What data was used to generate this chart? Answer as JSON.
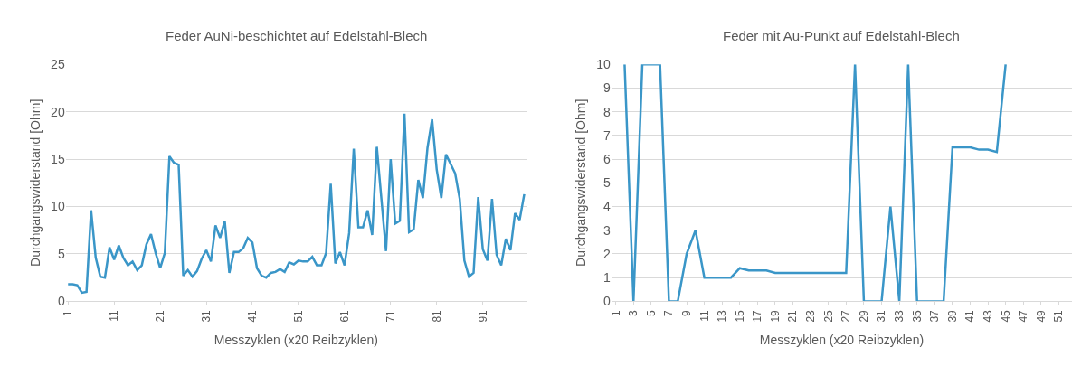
{
  "chart_data": [
    {
      "type": "line",
      "title": "Feder AuNi-beschichtet auf Edelstahl-Blech",
      "xlabel": "Messzyklen (x20 Reibzyklen)",
      "ylabel": "Durchgangswiderstand [Ohm]",
      "categories": [
        "1",
        null,
        null,
        null,
        null,
        null,
        null,
        null,
        null,
        null,
        "11",
        null,
        null,
        null,
        null,
        null,
        null,
        null,
        null,
        null,
        "21",
        null,
        null,
        null,
        null,
        null,
        null,
        null,
        null,
        null,
        "31",
        null,
        null,
        null,
        null,
        null,
        null,
        null,
        null,
        null,
        "41",
        null,
        null,
        null,
        null,
        null,
        null,
        null,
        null,
        null,
        "51",
        null,
        null,
        null,
        null,
        null,
        null,
        null,
        null,
        null,
        "61",
        null,
        null,
        null,
        null,
        null,
        null,
        null,
        null,
        null,
        "71",
        null,
        null,
        null,
        null,
        null,
        null,
        null,
        null,
        null,
        "81",
        null,
        null,
        null,
        null,
        null,
        null,
        null,
        null,
        null,
        "91",
        null,
        null,
        null,
        null,
        null,
        null,
        null,
        null,
        null
      ],
      "series": [
        {
          "color": "#3a96c8",
          "values": [
            1.8,
            1.8,
            1.7,
            0.9,
            1.0,
            9.6,
            4.6,
            2.6,
            2.5,
            5.7,
            4.4,
            5.9,
            4.6,
            3.8,
            4.2,
            3.3,
            3.8,
            6.0,
            7.1,
            5.1,
            3.5,
            5.1,
            15.3,
            14.6,
            14.4,
            2.7,
            3.3,
            2.6,
            3.2,
            4.5,
            5.4,
            4.2,
            8.0,
            6.7,
            8.5,
            3.0,
            5.2,
            5.2,
            5.6,
            6.7,
            6.2,
            3.5,
            2.7,
            2.5,
            3.0,
            3.1,
            3.4,
            3.1,
            4.1,
            3.9,
            4.3,
            4.2,
            4.2,
            4.7,
            3.8,
            3.8,
            5.1,
            12.4,
            4.0,
            5.2,
            3.8,
            7.2,
            16.1,
            7.8,
            7.8,
            9.6,
            7.0,
            16.3,
            10.8,
            5.3,
            15.0,
            8.2,
            8.5,
            19.8,
            7.3,
            7.6,
            12.8,
            10.9,
            16.2,
            19.2,
            13.9,
            10.9,
            15.5,
            14.5,
            13.5,
            10.8,
            4.3,
            2.6,
            3.0,
            11.0,
            5.5,
            4.3,
            10.8,
            4.9,
            3.8,
            6.6,
            5.4,
            9.3,
            8.6,
            11.3
          ]
        }
      ],
      "ylim": [
        0,
        25
      ],
      "yticks": [
        0,
        5,
        10,
        15,
        20,
        25
      ],
      "grid": "y",
      "marker": "none",
      "line_style": "solid"
    },
    {
      "type": "line",
      "title": "Feder mit Au-Punkt auf Edelstahl-Blech",
      "xlabel": "Messzyklen (x20 Reibzyklen)",
      "ylabel": "Durchgangswiderstand [Ohm]",
      "categories": [
        "1",
        null,
        "3",
        null,
        "5",
        null,
        "7",
        null,
        "9",
        null,
        "11",
        null,
        "13",
        null,
        "15",
        null,
        "17",
        null,
        "19",
        null,
        "21",
        null,
        "23",
        null,
        "25",
        null,
        "27",
        null,
        "29",
        null,
        "31",
        null,
        "33",
        null,
        "35",
        null,
        "37",
        null,
        "39",
        null,
        "41",
        null,
        "43",
        null,
        "45",
        null,
        "47",
        null,
        "49",
        null,
        "51",
        null
      ],
      "series": [
        {
          "color": "#3a96c8",
          "values": [
            null,
            10,
            0,
            10,
            10,
            10,
            0,
            0,
            2.0,
            3.0,
            1.0,
            1.0,
            1.0,
            1.0,
            1.4,
            1.3,
            1.3,
            1.3,
            1.2,
            1.2,
            1.2,
            1.2,
            1.2,
            1.2,
            1.2,
            1.2,
            1.2,
            10,
            0,
            0,
            0,
            4.0,
            0,
            10,
            0,
            0,
            0,
            0,
            6.5,
            6.5,
            6.5,
            6.4,
            6.4,
            6.3,
            10,
            null,
            null,
            null,
            null,
            null,
            null,
            null
          ]
        }
      ],
      "ylim": [
        0,
        10
      ],
      "yticks": [
        0,
        1,
        2,
        3,
        4,
        5,
        6,
        7,
        8,
        9,
        10
      ],
      "grid": "y",
      "marker": "none",
      "line_style": "solid"
    }
  ]
}
